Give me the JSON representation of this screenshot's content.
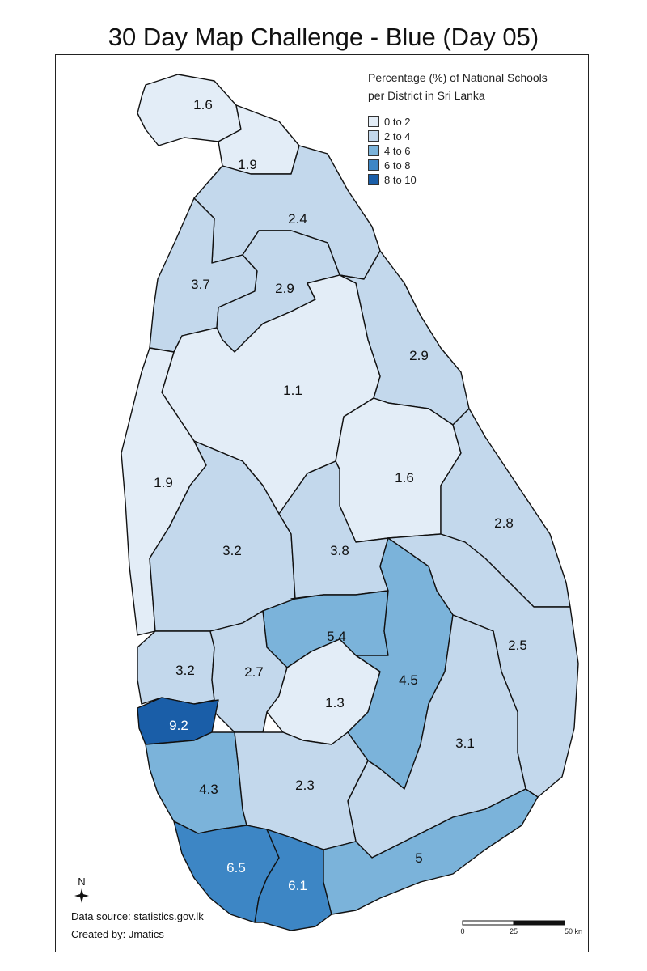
{
  "title": "30 Day Map Challenge - Blue (Day 05)",
  "legend": {
    "title_line1": "Percentage (%) of National Schools",
    "title_line2": "per District in Sri Lanka",
    "classes": [
      {
        "label": "0 to 2",
        "color": "#e3edf7"
      },
      {
        "label": "2 to 4",
        "color": "#c3d8ec"
      },
      {
        "label": "4 to 6",
        "color": "#7bb3da"
      },
      {
        "label": "6 to 8",
        "color": "#3d86c5"
      },
      {
        "label": "8 to 10",
        "color": "#1a5ea8"
      }
    ]
  },
  "districts": [
    {
      "id": "jaffna",
      "value": "1.6"
    },
    {
      "id": "kilinochchi",
      "value": "1.9"
    },
    {
      "id": "mullaitivu",
      "value": "2.4"
    },
    {
      "id": "mannar",
      "value": "3.7"
    },
    {
      "id": "vavuniya",
      "value": "2.9"
    },
    {
      "id": "trincomalee",
      "value": "2.9"
    },
    {
      "id": "anuradhapura",
      "value": "1.1"
    },
    {
      "id": "puttalam",
      "value": "1.9"
    },
    {
      "id": "polonnaruwa",
      "value": "1.6"
    },
    {
      "id": "batticaloa",
      "value": "2.8"
    },
    {
      "id": "kurunegala",
      "value": "3.2"
    },
    {
      "id": "matale",
      "value": "3.8"
    },
    {
      "id": "kandy",
      "value": "5.4"
    },
    {
      "id": "ampara",
      "value": "2.5"
    },
    {
      "id": "gampaha",
      "value": "3.2"
    },
    {
      "id": "kegalle",
      "value": "2.7"
    },
    {
      "id": "nuwara_eliya",
      "value": "1.3"
    },
    {
      "id": "badulla",
      "value": "4.5"
    },
    {
      "id": "colombo",
      "value": "9.2"
    },
    {
      "id": "monaragala",
      "value": "3.1"
    },
    {
      "id": "kalutara",
      "value": "4.3"
    },
    {
      "id": "ratnapura",
      "value": "2.3"
    },
    {
      "id": "galle",
      "value": "6.5"
    },
    {
      "id": "matara",
      "value": "6.1"
    },
    {
      "id": "hambantota",
      "value": "5"
    }
  ],
  "north_label": "N",
  "credits": {
    "source": "Data source: statistics.gov.lk",
    "author": "Created by: Jmatics"
  },
  "scale": {
    "ticks": [
      "0",
      "25",
      "50 km"
    ]
  }
}
